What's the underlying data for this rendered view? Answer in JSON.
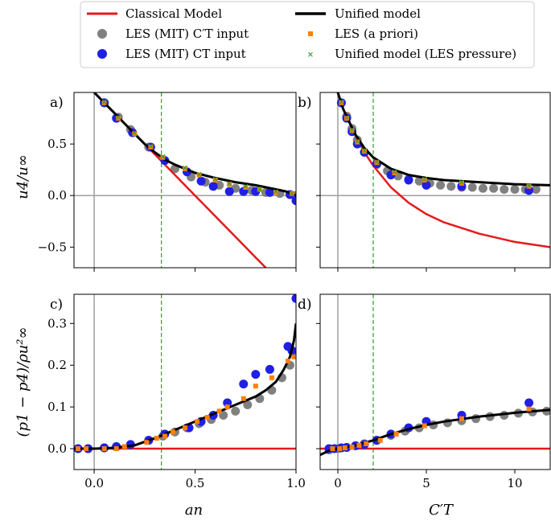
{
  "legend": [
    {
      "label": "Classical Model",
      "kind": "line",
      "color": "#e41a1c"
    },
    {
      "label": "LES (MIT) C′T input",
      "kind": "circle",
      "color": "#808080"
    },
    {
      "label": "LES (MIT) CT input",
      "kind": "circle",
      "color": "#1f1fe6"
    },
    {
      "label": "Unified model",
      "kind": "line",
      "color": "#000000"
    },
    {
      "label": "LES (a priori)",
      "kind": "square",
      "color": "#ff7f0e"
    },
    {
      "label": "Unified model (LES pressure)",
      "kind": "cross",
      "color": "#2ca02c"
    }
  ],
  "axis_labels": {
    "top_y": "u4/u∞",
    "bottom_y": "(p1 − p4)/ρu²∞",
    "left_x": "an",
    "right_x": "C′T"
  },
  "colors": {
    "classical": "#e41a1c",
    "unified": "#000000",
    "les_ctprime": "#808080",
    "les_ct": "#1f1fe6",
    "les_apriori": "#ff7f0e",
    "unified_les_p": "#2ca02c",
    "vline": "#2ca02c",
    "zero_line": "#a0a0a0"
  },
  "chart_data": [
    {
      "panel": "a)",
      "type": "line",
      "xlim": [
        -0.1,
        1.0
      ],
      "ylim": [
        -0.7,
        1.0
      ],
      "xticks": [
        0.0,
        0.5,
        1.0
      ],
      "yticks": [
        -0.5,
        0.0,
        0.5
      ],
      "ytick_labels": [
        "−0.5",
        "0.0",
        "0.5"
      ],
      "x_tick_labels_shown": false,
      "vline_dashed": 0.333,
      "zero_hline": 0,
      "zero_vline": 0,
      "series": [
        {
          "name": "Classical Model",
          "x": [
            0.0,
            0.1,
            0.2,
            0.3,
            0.4,
            0.5,
            0.6,
            0.7,
            0.8,
            0.85
          ],
          "y": [
            1.0,
            0.8,
            0.6,
            0.4,
            0.2,
            0.0,
            -0.2,
            -0.4,
            -0.6,
            -0.7
          ]
        },
        {
          "name": "Unified model",
          "x": [
            0.0,
            0.05,
            0.1,
            0.15,
            0.2,
            0.25,
            0.3,
            0.35,
            0.4,
            0.5,
            0.6,
            0.7,
            0.8,
            0.9,
            0.95,
            1.0
          ],
          "y": [
            1.0,
            0.9,
            0.8,
            0.7,
            0.6,
            0.5,
            0.42,
            0.35,
            0.3,
            0.22,
            0.17,
            0.13,
            0.1,
            0.06,
            0.04,
            0.0
          ]
        },
        {
          "name": "LES (MIT) C′T input",
          "x": [
            0.05,
            0.12,
            0.18,
            0.27,
            0.4,
            0.48,
            0.55,
            0.62,
            0.7,
            0.78,
            0.85,
            0.92,
            0.97,
            1.0
          ],
          "y": [
            0.9,
            0.76,
            0.64,
            0.47,
            0.26,
            0.18,
            0.13,
            0.1,
            0.07,
            0.05,
            0.03,
            0.02,
            0.01,
            0.0
          ]
        },
        {
          "name": "LES (MIT) CT input",
          "x": [
            0.05,
            0.11,
            0.19,
            0.28,
            0.35,
            0.46,
            0.53,
            0.59,
            0.67,
            0.74,
            0.8,
            0.87,
            0.97,
            1.0
          ],
          "y": [
            0.9,
            0.75,
            0.61,
            0.47,
            0.34,
            0.23,
            0.14,
            0.09,
            0.04,
            0.04,
            0.04,
            0.03,
            0.01,
            -0.05
          ]
        },
        {
          "name": "LES (a priori)",
          "x": [
            0.05,
            0.12,
            0.2,
            0.28,
            0.34,
            0.45,
            0.52,
            0.6,
            0.67,
            0.75,
            0.82,
            0.9,
            0.98
          ],
          "y": [
            0.9,
            0.75,
            0.6,
            0.47,
            0.37,
            0.26,
            0.2,
            0.15,
            0.11,
            0.08,
            0.06,
            0.03,
            0.02
          ]
        },
        {
          "name": "Unified model (LES pressure)",
          "x": [
            0.05,
            0.12,
            0.2,
            0.28,
            0.34,
            0.45,
            0.52,
            0.6,
            0.67,
            0.75,
            0.82,
            0.9,
            0.98
          ],
          "y": [
            0.91,
            0.76,
            0.61,
            0.48,
            0.38,
            0.27,
            0.21,
            0.16,
            0.12,
            0.09,
            0.06,
            0.04,
            0.02
          ]
        }
      ]
    },
    {
      "panel": "b)",
      "type": "line",
      "xlim": [
        -1,
        12
      ],
      "ylim": [
        -0.7,
        1.0
      ],
      "xticks": [
        0,
        5,
        10
      ],
      "yticks": [
        -0.5,
        0.0,
        0.5
      ],
      "x_tick_labels_shown": false,
      "y_tick_labels_shown": false,
      "vline_dashed": 2.0,
      "zero_hline": 0,
      "zero_vline": 0,
      "series": [
        {
          "name": "Classical Model",
          "x": [
            0.0,
            0.3,
            0.6,
            1.0,
            1.5,
            2.0,
            3,
            4,
            5,
            6,
            8,
            10,
            12
          ],
          "y": [
            1.0,
            0.84,
            0.73,
            0.58,
            0.42,
            0.29,
            0.08,
            -0.07,
            -0.18,
            -0.26,
            -0.37,
            -0.45,
            -0.5
          ]
        },
        {
          "name": "Unified model",
          "x": [
            -0.1,
            0.0,
            0.3,
            0.6,
            1.0,
            1.5,
            2.0,
            3,
            4,
            5,
            6,
            8,
            10,
            12
          ],
          "y": [
            1.1,
            1.0,
            0.84,
            0.73,
            0.59,
            0.46,
            0.37,
            0.26,
            0.2,
            0.17,
            0.15,
            0.13,
            0.11,
            0.1
          ]
        },
        {
          "name": "LES (MIT) C′T input",
          "x": [
            0.2,
            0.5,
            0.8,
            1.1,
            1.5,
            2.2,
            2.8,
            3.4,
            4.0,
            4.6,
            5.2,
            5.8,
            6.4,
            7.0,
            7.6,
            8.2,
            8.8,
            9.4,
            10.0,
            10.6,
            11.2
          ],
          "y": [
            0.9,
            0.77,
            0.65,
            0.54,
            0.42,
            0.3,
            0.24,
            0.19,
            0.16,
            0.14,
            0.12,
            0.1,
            0.09,
            0.08,
            0.08,
            0.07,
            0.07,
            0.06,
            0.06,
            0.06,
            0.06
          ]
        },
        {
          "name": "LES (MIT) CT input",
          "x": [
            0.2,
            0.5,
            0.8,
            1.1,
            1.5,
            2.2,
            3.0,
            4.0,
            5.0,
            7.0,
            10.8
          ],
          "y": [
            0.9,
            0.75,
            0.62,
            0.5,
            0.42,
            0.31,
            0.2,
            0.15,
            0.1,
            0.09,
            0.05
          ]
        },
        {
          "name": "LES (a priori)",
          "x": [
            0.2,
            0.5,
            0.8,
            1.1,
            1.5,
            2.2,
            3.2,
            4.9,
            7.0,
            10.8
          ],
          "y": [
            0.9,
            0.75,
            0.63,
            0.52,
            0.43,
            0.32,
            0.22,
            0.15,
            0.12,
            0.09
          ]
        },
        {
          "name": "Unified model (LES pressure)",
          "x": [
            0.2,
            0.5,
            0.8,
            1.1,
            1.5,
            2.2,
            3.2,
            4.9,
            7.0,
            10.8
          ],
          "y": [
            0.91,
            0.76,
            0.64,
            0.53,
            0.44,
            0.33,
            0.23,
            0.16,
            0.13,
            0.1
          ]
        }
      ]
    },
    {
      "panel": "c)",
      "type": "line",
      "xlim": [
        -0.1,
        1.0
      ],
      "ylim": [
        -0.05,
        0.37
      ],
      "xticks": [
        0.0,
        0.5,
        1.0
      ],
      "xtick_labels": [
        "0.0",
        "0.5",
        "1.0"
      ],
      "yticks": [
        0.0,
        0.1,
        0.2,
        0.3
      ],
      "ytick_labels": [
        "0.0",
        "0.1",
        "0.2",
        "0.3"
      ],
      "vline_dashed": 0.333,
      "zero_vline": 0,
      "series": [
        {
          "name": "Classical Model",
          "x": [
            -0.1,
            1.0
          ],
          "y": [
            0.0,
            0.0
          ]
        },
        {
          "name": "Unified model",
          "x": [
            -0.1,
            0.0,
            0.1,
            0.2,
            0.3,
            0.4,
            0.5,
            0.6,
            0.7,
            0.8,
            0.85,
            0.9,
            0.94,
            0.97,
            0.99,
            1.0
          ],
          "y": [
            0.0,
            0.0,
            0.002,
            0.008,
            0.025,
            0.045,
            0.065,
            0.085,
            0.105,
            0.125,
            0.14,
            0.16,
            0.19,
            0.22,
            0.26,
            0.3
          ]
        },
        {
          "name": "LES (MIT) C′T input",
          "x": [
            -0.08,
            -0.03,
            0.05,
            0.11,
            0.18,
            0.27,
            0.34,
            0.4,
            0.46,
            0.52,
            0.58,
            0.64,
            0.7,
            0.76,
            0.82,
            0.88,
            0.93,
            0.97,
            1.0
          ],
          "y": [
            0.0,
            0.0,
            0.002,
            0.005,
            0.01,
            0.02,
            0.03,
            0.04,
            0.05,
            0.06,
            0.07,
            0.08,
            0.09,
            0.105,
            0.12,
            0.14,
            0.17,
            0.2,
            0.23
          ]
        },
        {
          "name": "LES (MIT) CT input",
          "x": [
            -0.08,
            -0.03,
            0.05,
            0.11,
            0.18,
            0.27,
            0.35,
            0.47,
            0.53,
            0.59,
            0.66,
            0.74,
            0.8,
            0.87,
            0.96,
            0.98,
            1.0
          ],
          "y": [
            0.0,
            0.0,
            0.002,
            0.005,
            0.01,
            0.02,
            0.035,
            0.05,
            0.065,
            0.08,
            0.11,
            0.155,
            0.178,
            0.19,
            0.245,
            0.235,
            0.36
          ]
        },
        {
          "name": "LES (a priori)",
          "x": [
            -0.08,
            -0.04,
            0.05,
            0.11,
            0.15,
            0.26,
            0.31,
            0.35,
            0.39,
            0.45,
            0.51,
            0.56,
            0.62,
            0.66,
            0.74,
            0.8,
            0.88,
            0.96,
            0.99
          ],
          "y": [
            0.0,
            0.0,
            0.0,
            0.0,
            0.005,
            0.015,
            0.025,
            0.03,
            0.04,
            0.05,
            0.065,
            0.075,
            0.09,
            0.1,
            0.12,
            0.15,
            0.17,
            0.21,
            0.22
          ]
        }
      ]
    },
    {
      "panel": "d)",
      "type": "line",
      "xlim": [
        -1,
        12
      ],
      "ylim": [
        -0.05,
        0.37
      ],
      "xticks": [
        0,
        5,
        10
      ],
      "xtick_labels": [
        "0",
        "5",
        "10"
      ],
      "yticks": [
        0.0,
        0.1,
        0.2,
        0.3
      ],
      "y_tick_labels_shown": false,
      "vline_dashed": 2.0,
      "zero_vline": 0,
      "series": [
        {
          "name": "Classical Model",
          "x": [
            -1,
            12
          ],
          "y": [
            0.0,
            0.0
          ]
        },
        {
          "name": "Unified model",
          "x": [
            -1,
            -0.5,
            0.0,
            0.5,
            1.0,
            2.0,
            3.0,
            4.0,
            5.0,
            6.0,
            8.0,
            10.0,
            12.0
          ],
          "y": [
            -0.015,
            -0.005,
            0.0,
            0.004,
            0.008,
            0.02,
            0.035,
            0.047,
            0.057,
            0.065,
            0.077,
            0.086,
            0.093
          ]
        },
        {
          "name": "LES (MIT) C′T input",
          "x": [
            -0.5,
            0.0,
            0.5,
            1.0,
            1.5,
            2.2,
            3.0,
            3.8,
            4.6,
            5.4,
            6.2,
            7.0,
            7.8,
            8.6,
            9.4,
            10.2,
            11.0,
            11.8
          ],
          "y": [
            -0.003,
            0.0,
            0.003,
            0.007,
            0.012,
            0.02,
            0.032,
            0.042,
            0.05,
            0.057,
            0.062,
            0.067,
            0.072,
            0.077,
            0.08,
            0.085,
            0.088,
            0.09
          ]
        },
        {
          "name": "LES (MIT) CT input",
          "x": [
            -0.5,
            -0.2,
            0.2,
            0.5,
            1.0,
            1.5,
            2.2,
            3.0,
            4.0,
            5.0,
            7.0,
            10.8
          ],
          "y": [
            0.0,
            0.0,
            0.002,
            0.003,
            0.007,
            0.01,
            0.02,
            0.035,
            0.05,
            0.065,
            0.08,
            0.11
          ]
        },
        {
          "name": "LES (a priori)",
          "x": [
            -0.3,
            0.1,
            0.4,
            0.8,
            1.2,
            1.6,
            2.4,
            3.3,
            4.9,
            7.0,
            10.8
          ],
          "y": [
            0.0,
            0.0,
            0.002,
            0.004,
            0.008,
            0.012,
            0.02,
            0.035,
            0.055,
            0.072,
            0.095
          ]
        }
      ]
    }
  ]
}
